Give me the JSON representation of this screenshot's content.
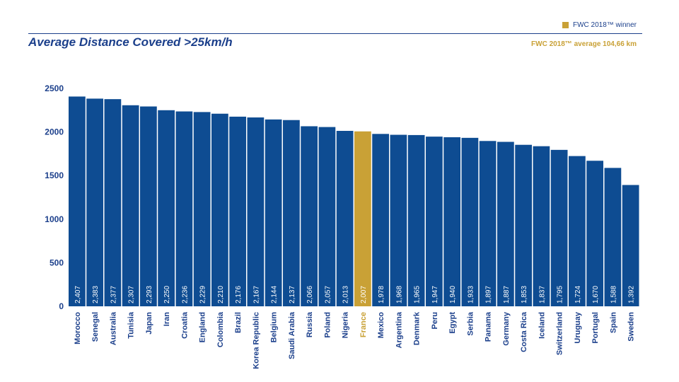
{
  "header": {
    "legend_label": "FWC 2018™ winner",
    "title": "Average Distance Covered >25km/h",
    "average_note": "FWC 2018™ average 104,66 km"
  },
  "colors": {
    "bar": "#0e4c92",
    "highlight": "#c9a136",
    "axis_text": "#1b3f8b"
  },
  "chart_data": {
    "type": "bar",
    "title": "Average Distance Covered >25km/h",
    "xlabel": "",
    "ylabel": "",
    "ylim": [
      0,
      2500
    ],
    "yticks": [
      0,
      500,
      1000,
      1500,
      2000,
      2500
    ],
    "grid": false,
    "legend": "top-right",
    "highlight_category": "France",
    "categories": [
      "Morocco",
      "Senegal",
      "Australia",
      "Tunisia",
      "Japan",
      "Iran",
      "Croatia",
      "England",
      "Colombia",
      "Brazil",
      "Korea Republic",
      "Belgium",
      "Saudi Arabia",
      "Russia",
      "Poland",
      "Nigeria",
      "France",
      "Mexico",
      "Argentina",
      "Denmark",
      "Peru",
      "Egypt",
      "Serbia",
      "Panama",
      "Germany",
      "Costa Rica",
      "Iceland",
      "Switzerland",
      "Uruguay",
      "Portugal",
      "Spain",
      "Sweden"
    ],
    "values": [
      2407,
      2383,
      2377,
      2307,
      2293,
      2250,
      2236,
      2229,
      2210,
      2176,
      2167,
      2144,
      2137,
      2066,
      2057,
      2013,
      2007,
      1978,
      1968,
      1965,
      1947,
      1940,
      1933,
      1897,
      1887,
      1853,
      1837,
      1795,
      1724,
      1670,
      1588,
      1392
    ],
    "value_labels": [
      "2,407",
      "2,383",
      "2,377",
      "2,307",
      "2,293",
      "2,250",
      "2,236",
      "2,229",
      "2,210",
      "2,176",
      "2,167",
      "2,144",
      "2,137",
      "2,066",
      "2,057",
      "2,013",
      "2,007",
      "1,978",
      "1,968",
      "1,965",
      "1,947",
      "1,940",
      "1,933",
      "1,897",
      "1,887",
      "1,853",
      "1,837",
      "1,795",
      "1,724",
      "1,670",
      "1,588",
      "1,392"
    ]
  }
}
